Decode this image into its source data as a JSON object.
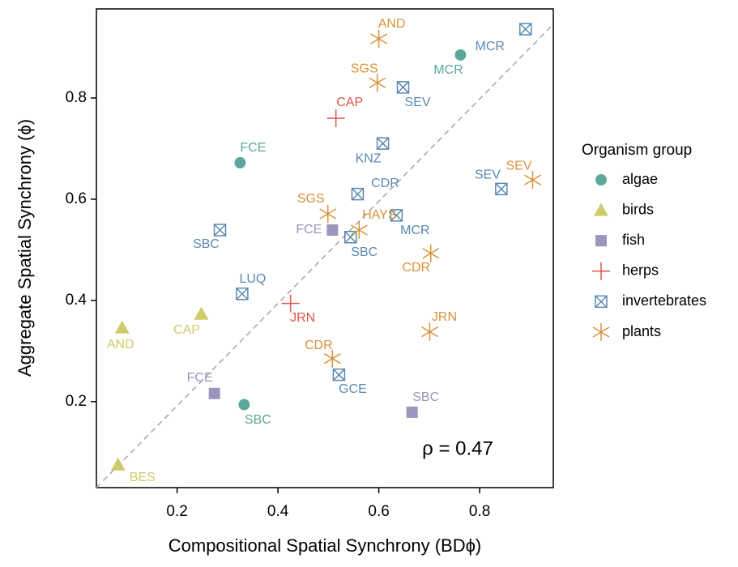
{
  "chart_data": {
    "type": "scatter",
    "xlabel": "Compositional Spatial Synchrony (BDϕ)",
    "ylabel": "Aggregate Spatial Synchrony (ϕ)",
    "annotation": "ρ = 0.47",
    "legend_title": "Organism group",
    "legend": "right",
    "xlim": [
      0.04,
      0.946
    ],
    "ylim": [
      0.03,
      0.976
    ],
    "xticks": [
      0.2,
      0.4,
      0.6,
      0.8
    ],
    "yticks": [
      0.2,
      0.4,
      0.6,
      0.8
    ],
    "series": [
      {
        "name": "algae",
        "color": "#5ba89a",
        "marker": "circle",
        "labels": [
          "FCE",
          "MCR",
          "SBC"
        ],
        "x": [
          0.325,
          0.762,
          0.333
        ],
        "values": [
          0.672,
          0.885,
          0.194
        ]
      },
      {
        "name": "birds",
        "color": "#cfcb6b",
        "marker": "triangle",
        "labels": [
          "AND",
          "CAP",
          "BES"
        ],
        "x": [
          0.091,
          0.248,
          0.083
        ],
        "values": [
          0.346,
          0.373,
          0.075
        ]
      },
      {
        "name": "fish",
        "color": "#9b96be",
        "marker": "square",
        "labels": [
          "FCE",
          "FCE",
          "SBC"
        ],
        "x": [
          0.508,
          0.274,
          0.666
        ],
        "values": [
          0.539,
          0.216,
          0.179
        ]
      },
      {
        "name": "herps",
        "color": "#e0544b",
        "marker": "plus",
        "labels": [
          "CAP",
          "JRN"
        ],
        "x": [
          0.515,
          0.425
        ],
        "values": [
          0.76,
          0.394
        ]
      },
      {
        "name": "invertebrates",
        "color": "#5a89b0",
        "marker": "boxx",
        "labels": [
          "MCR",
          "SEV",
          "KNZ",
          "CDR",
          "MCR",
          "SBC",
          "SBC",
          "LUQ",
          "GCE",
          "SEV"
        ],
        "x": [
          0.891,
          0.648,
          0.608,
          0.558,
          0.635,
          0.544,
          0.285,
          0.329,
          0.521,
          0.843
        ],
        "values": [
          0.936,
          0.821,
          0.71,
          0.61,
          0.568,
          0.525,
          0.539,
          0.413,
          0.253,
          0.62
        ]
      },
      {
        "name": "plants",
        "color": "#d9913a",
        "marker": "star",
        "labels": [
          "AND",
          "SGS",
          "SEV",
          "SGS",
          "HAYS",
          "CDR",
          "JRN",
          "CDR"
        ],
        "x": [
          0.6,
          0.597,
          0.905,
          0.499,
          0.561,
          0.703,
          0.701,
          0.508
        ],
        "values": [
          0.917,
          0.83,
          0.638,
          0.571,
          0.539,
          0.493,
          0.338,
          0.285
        ]
      }
    ]
  }
}
